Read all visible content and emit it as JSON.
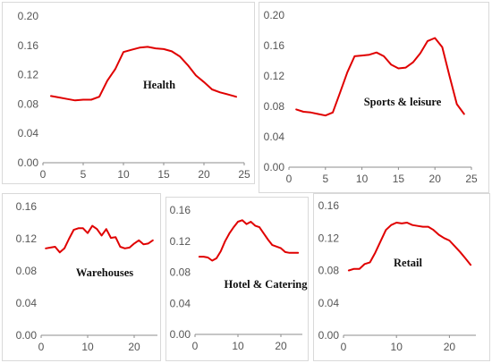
{
  "chart_data": [
    {
      "type": "line",
      "title": "",
      "label": "Health",
      "xlabel": "",
      "ylabel": "",
      "xlim": [
        0,
        25
      ],
      "ylim": [
        0.0,
        0.2
      ],
      "xticks": [
        0,
        5,
        10,
        15,
        20,
        25
      ],
      "yticks": [
        0.0,
        0.04,
        0.08,
        0.12,
        0.16,
        0.2
      ],
      "ytick_labels": [
        "0.00",
        "0.04",
        "0.08",
        "0.12",
        "0.16",
        "0.20"
      ],
      "grid": false,
      "line_color": "#e00000",
      "x": [
        1,
        2,
        3,
        4,
        5,
        6,
        7,
        8,
        9,
        10,
        11,
        12,
        13,
        14,
        15,
        16,
        17,
        18,
        19,
        20,
        21,
        22,
        23,
        24
      ],
      "y": [
        0.091,
        0.089,
        0.087,
        0.085,
        0.086,
        0.086,
        0.09,
        0.112,
        0.128,
        0.151,
        0.154,
        0.157,
        0.158,
        0.156,
        0.155,
        0.152,
        0.145,
        0.133,
        0.119,
        0.11,
        0.1,
        0.096,
        0.093,
        0.09
      ]
    },
    {
      "type": "line",
      "title": "",
      "label": "Sports & leisure",
      "xlabel": "",
      "ylabel": "",
      "xlim": [
        0,
        25
      ],
      "ylim": [
        0.0,
        0.2
      ],
      "xticks": [
        0,
        5,
        10,
        15,
        20,
        25
      ],
      "yticks": [
        0.0,
        0.04,
        0.08,
        0.12,
        0.16,
        0.2
      ],
      "ytick_labels": [
        "0.00",
        "0.04",
        "0.08",
        "0.12",
        "0.16",
        "0.20"
      ],
      "grid": false,
      "line_color": "#e00000",
      "x": [
        1,
        2,
        3,
        4,
        5,
        6,
        7,
        8,
        9,
        10,
        11,
        12,
        13,
        14,
        15,
        16,
        17,
        18,
        19,
        20,
        21,
        22,
        23,
        24
      ],
      "y": [
        0.076,
        0.073,
        0.072,
        0.07,
        0.068,
        0.072,
        0.098,
        0.125,
        0.146,
        0.147,
        0.148,
        0.151,
        0.146,
        0.135,
        0.13,
        0.131,
        0.138,
        0.15,
        0.166,
        0.17,
        0.158,
        0.12,
        0.083,
        0.07
      ]
    },
    {
      "type": "line",
      "title": "",
      "label": "Warehouses",
      "xlabel": "",
      "ylabel": "",
      "xlim": [
        0,
        25
      ],
      "ylim": [
        0.0,
        0.16
      ],
      "xticks": [
        0,
        10,
        20
      ],
      "yticks": [
        0.0,
        0.04,
        0.08,
        0.12,
        0.16
      ],
      "ytick_labels": [
        "0.00",
        "0.04",
        "0.08",
        "0.12",
        "0.16"
      ],
      "grid": false,
      "line_color": "#e00000",
      "x": [
        1,
        2,
        3,
        4,
        5,
        6,
        7,
        8,
        9,
        10,
        11,
        12,
        13,
        14,
        15,
        16,
        17,
        18,
        19,
        20,
        21,
        22,
        23,
        24
      ],
      "y": [
        0.108,
        0.109,
        0.11,
        0.103,
        0.108,
        0.12,
        0.131,
        0.133,
        0.133,
        0.127,
        0.136,
        0.132,
        0.124,
        0.132,
        0.121,
        0.122,
        0.11,
        0.108,
        0.109,
        0.114,
        0.118,
        0.113,
        0.114,
        0.118
      ]
    },
    {
      "type": "line",
      "title": "",
      "label": "Hotel & Catering",
      "xlabel": "",
      "ylabel": "",
      "xlim": [
        0,
        25
      ],
      "ylim": [
        0.0,
        0.16
      ],
      "xticks": [
        0,
        10,
        20
      ],
      "yticks": [
        0.0,
        0.04,
        0.08,
        0.12,
        0.16
      ],
      "ytick_labels": [
        "0.00",
        "0.04",
        "0.08",
        "0.12",
        "0.16"
      ],
      "grid": false,
      "line_color": "#e00000",
      "x": [
        1,
        2,
        3,
        4,
        5,
        6,
        7,
        8,
        9,
        10,
        11,
        12,
        13,
        14,
        15,
        16,
        17,
        18,
        19,
        20,
        21,
        22,
        23,
        24
      ],
      "y": [
        0.1,
        0.1,
        0.099,
        0.095,
        0.098,
        0.107,
        0.12,
        0.13,
        0.138,
        0.145,
        0.147,
        0.142,
        0.145,
        0.14,
        0.138,
        0.13,
        0.122,
        0.115,
        0.113,
        0.111,
        0.106,
        0.105,
        0.105,
        0.105
      ]
    },
    {
      "type": "line",
      "title": "",
      "label": "Retail",
      "xlabel": "",
      "ylabel": "",
      "xlim": [
        0,
        25
      ],
      "ylim": [
        0.0,
        0.16
      ],
      "xticks": [
        0,
        10,
        20
      ],
      "yticks": [
        0.0,
        0.04,
        0.08,
        0.12,
        0.16
      ],
      "ytick_labels": [
        "0.00",
        "0.04",
        "0.08",
        "0.12",
        "0.16"
      ],
      "grid": false,
      "line_color": "#e00000",
      "x": [
        1,
        2,
        3,
        4,
        5,
        6,
        7,
        8,
        9,
        10,
        11,
        12,
        13,
        14,
        15,
        16,
        17,
        18,
        19,
        20,
        21,
        22,
        23,
        24
      ],
      "y": [
        0.08,
        0.082,
        0.082,
        0.088,
        0.09,
        0.102,
        0.116,
        0.13,
        0.136,
        0.139,
        0.138,
        0.139,
        0.136,
        0.135,
        0.134,
        0.134,
        0.13,
        0.124,
        0.12,
        0.117,
        0.11,
        0.103,
        0.095,
        0.087
      ]
    }
  ]
}
